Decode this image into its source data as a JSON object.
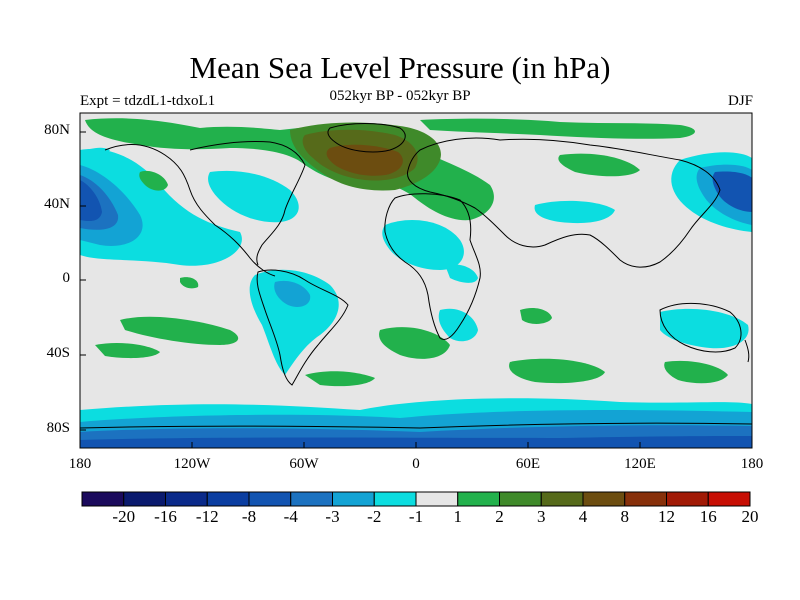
{
  "title": "Mean Sea Level Pressure (in hPa)",
  "subtitle": "052kyr BP - 052kyr BP",
  "left_label": "Expt = tdzdL1-tdxoL1",
  "right_label": "DJF",
  "yticks": [
    "80N",
    "40N",
    "0",
    "40S",
    "80S"
  ],
  "xticks": [
    "180",
    "120W",
    "60W",
    "0",
    "60E",
    "120E",
    "180"
  ],
  "colorbar": {
    "labels": [
      "-20",
      "-16",
      "-12",
      "-8",
      "-4",
      "-3",
      "-2",
      "-1",
      "1",
      "2",
      "3",
      "4",
      "8",
      "12",
      "16",
      "20"
    ],
    "colors": [
      "#1b0a5c",
      "#0a1a6e",
      "#0a2a8a",
      "#0b3ea1",
      "#1254b1",
      "#1c72c0",
      "#13a3d4",
      "#0cdde0",
      "#e6e6e6",
      "#22b14c",
      "#3f8a2a",
      "#566a1a",
      "#6c4d10",
      "#87300a",
      "#a11a06",
      "#c70e04"
    ]
  },
  "map_colors": {
    "background": "#e6e6e6",
    "cyan": "#0cdde0",
    "light_blue": "#13a3d4",
    "mid_blue": "#1c72c0",
    "blue": "#1254b1",
    "dark_blue": "#0b3ea1",
    "green": "#22b14c",
    "dark_green": "#3f8a2a",
    "olive": "#566a1a",
    "brown": "#6c4d10"
  }
}
